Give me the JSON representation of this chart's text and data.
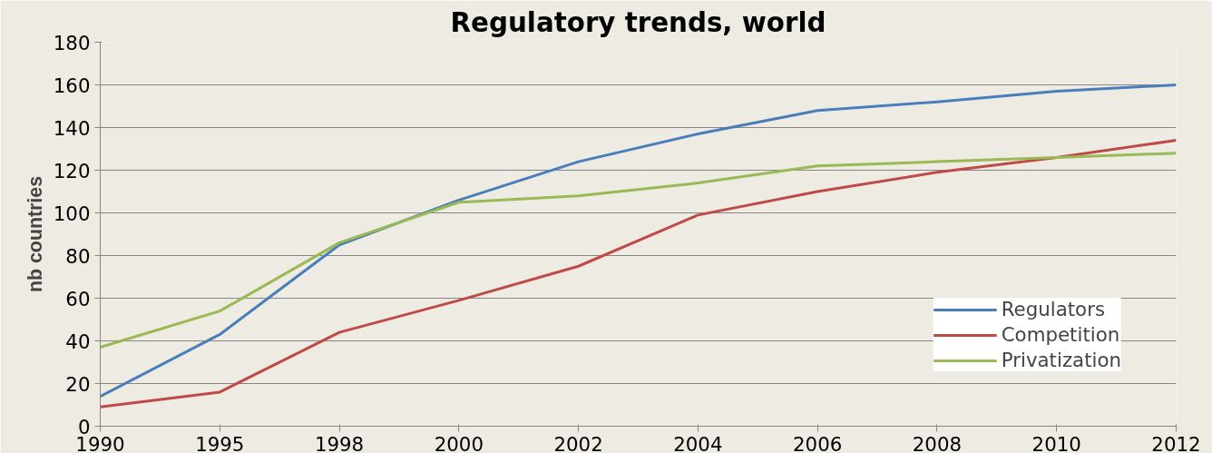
{
  "chart_data": {
    "type": "line",
    "title": "Regulatory trends, world",
    "ylabel": "nb countries",
    "categories": [
      "1990",
      "1995",
      "1998",
      "2000",
      "2002",
      "2004",
      "2006",
      "2008",
      "2010",
      "2012"
    ],
    "series": [
      {
        "name": "Regulators",
        "color": "#4a7ebb",
        "values": [
          14,
          43,
          85,
          106,
          124,
          137,
          148,
          152,
          157,
          160
        ]
      },
      {
        "name": "Competition",
        "color": "#be4b48",
        "values": [
          9,
          16,
          44,
          59,
          75,
          99,
          110,
          119,
          126,
          134
        ]
      },
      {
        "name": "Privatization",
        "color": "#98b954",
        "values": [
          37,
          54,
          86,
          105,
          108,
          114,
          122,
          124,
          126,
          128
        ]
      }
    ],
    "ylim": [
      0,
      180
    ],
    "yticks": [
      0,
      20,
      40,
      60,
      80,
      100,
      120,
      140,
      160,
      180
    ],
    "grid": "y",
    "legend": "bottom right",
    "marker": "none",
    "line_style": "solid"
  }
}
